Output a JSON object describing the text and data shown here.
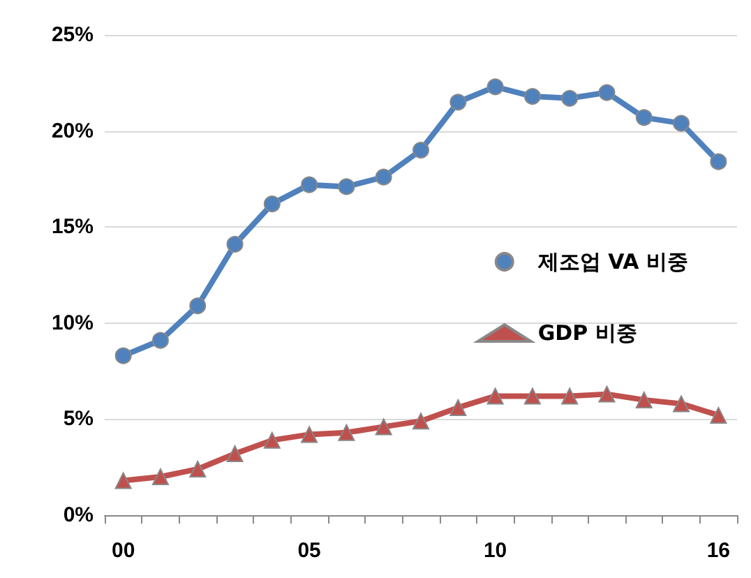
{
  "chart_data": {
    "type": "line",
    "categories": [
      "00",
      null,
      null,
      null,
      null,
      "05",
      null,
      null,
      null,
      null,
      "10",
      null,
      null,
      null,
      null,
      null,
      "16"
    ],
    "series": [
      {
        "name": "제조업 VA 비중",
        "color": "#4f81bd",
        "marker": "circle",
        "values": [
          8.3,
          9.1,
          10.9,
          14.1,
          16.2,
          17.2,
          17.1,
          17.6,
          19.0,
          21.5,
          22.3,
          21.8,
          21.7,
          22.0,
          20.7,
          20.4,
          18.4
        ]
      },
      {
        "name": "GDP 비중",
        "color": "#c0504d",
        "marker": "triangle",
        "values": [
          1.8,
          2.0,
          2.4,
          3.2,
          3.9,
          4.2,
          4.3,
          4.6,
          4.9,
          5.6,
          6.2,
          6.2,
          6.2,
          6.3,
          6.0,
          5.8,
          5.2
        ]
      }
    ],
    "ylim": [
      0,
      25
    ],
    "yticks": [
      {
        "value": 0,
        "label": "0%"
      },
      {
        "value": 5,
        "label": "5%"
      },
      {
        "value": 10,
        "label": "10%"
      },
      {
        "value": 15,
        "label": "15%"
      },
      {
        "value": 20,
        "label": "20%"
      },
      {
        "value": 25,
        "label": "25%"
      }
    ],
    "grid": "y",
    "legend": "right",
    "line_style": "solid"
  }
}
